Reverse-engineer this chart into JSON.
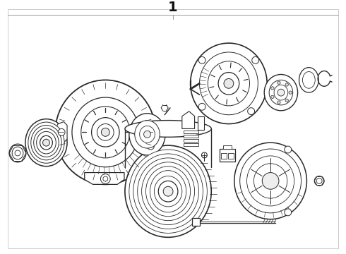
{
  "bg_color": "#ffffff",
  "line_color": "#2a2a2a",
  "border_color": "#cccccc",
  "fig_width": 4.9,
  "fig_height": 3.6,
  "dpi": 100,
  "title": "1",
  "title_fontsize": 14,
  "border_lw": 0.7
}
